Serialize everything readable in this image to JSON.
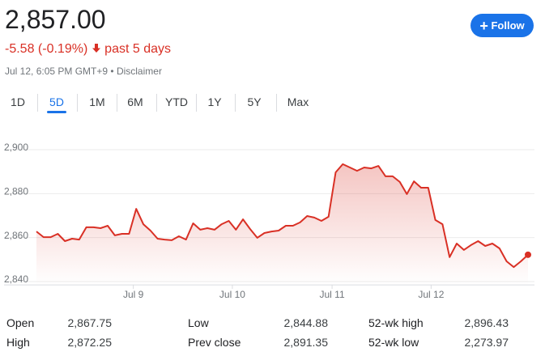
{
  "header": {
    "price": "2,857.00",
    "change": "-5.58 (-0.19%)",
    "period": "past 5 days",
    "timestamp": "Jul 12, 6:05 PM GMT+9",
    "disclaimer": "Disclaimer",
    "follow": "Follow"
  },
  "tabs": [
    "1D",
    "5D",
    "1M",
    "6M",
    "YTD",
    "1Y",
    "5Y",
    "Max"
  ],
  "selected_tab": 1,
  "chart_data": {
    "type": "line",
    "color": "#d93025",
    "grid": true,
    "values": [
      2862.8,
      2860.2,
      2860.2,
      2861.7,
      2858.4,
      2859.5,
      2859.1,
      2864.7,
      2864.7,
      2864.3,
      2865.4,
      2861.0,
      2861.7,
      2861.7,
      2873.1,
      2866.1,
      2863.2,
      2859.5,
      2859.1,
      2858.8,
      2860.6,
      2859.1,
      2866.5,
      2863.6,
      2864.3,
      2863.6,
      2866.1,
      2867.6,
      2863.6,
      2868.3,
      2863.9,
      2859.9,
      2862.1,
      2862.8,
      2863.2,
      2865.4,
      2865.4,
      2866.9,
      2869.8,
      2869.1,
      2867.6,
      2869.5,
      2889.7,
      2893.4,
      2891.9,
      2890.4,
      2891.9,
      2891.5,
      2892.6,
      2887.9,
      2887.9,
      2885.3,
      2879.8,
      2885.6,
      2882.7,
      2882.7,
      2868.0,
      2866.1,
      2851.1,
      2857.3,
      2854.4,
      2856.6,
      2858.4,
      2856.2,
      2857.3,
      2855.1,
      2849.2,
      2846.6,
      2849.2,
      2852.2
    ],
    "xlim": [
      0,
      69
    ],
    "xticks": [
      {
        "value": 13.6,
        "label": "Jul 9"
      },
      {
        "value": 27.5,
        "label": "Jul 10"
      },
      {
        "value": 41.5,
        "label": "Jul 11"
      },
      {
        "value": 55.4,
        "label": "Jul 12"
      }
    ],
    "ylim": [
      2838.5,
      2900
    ],
    "yticks": [
      {
        "value": 2840,
        "label": "2,840"
      },
      {
        "value": 2860,
        "label": "2,860"
      },
      {
        "value": 2880,
        "label": "2,880"
      },
      {
        "value": 2900,
        "label": "2,900"
      }
    ]
  },
  "stats": [
    [
      [
        "Open",
        "2,867.75"
      ],
      [
        "Low",
        "2,844.88"
      ],
      [
        "52-wk high",
        "2,896.43"
      ]
    ],
    [
      [
        "High",
        "2,872.25"
      ],
      [
        "Prev close",
        "2,891.35"
      ],
      [
        "52-wk low",
        "2,273.97"
      ]
    ]
  ]
}
